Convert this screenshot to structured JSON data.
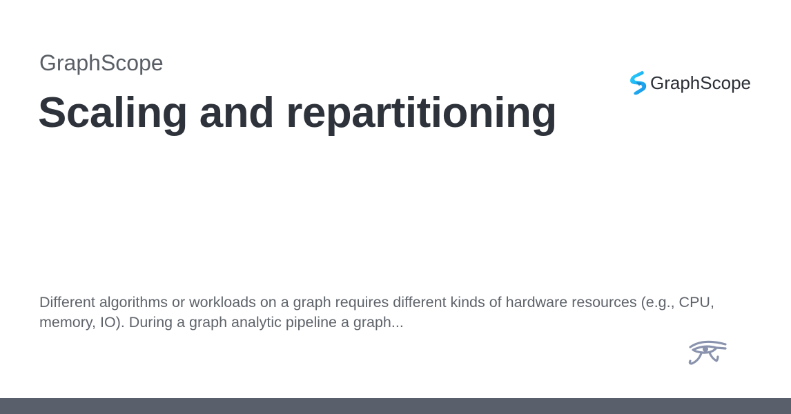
{
  "header": {
    "site_name": "GraphScope",
    "title": "Scaling and repartitioning",
    "logo": {
      "text": "GraphScope",
      "icon": "graphscope-logo-icon",
      "color": "#1db5f5"
    }
  },
  "description": "Different algorithms or workloads on a graph requires different kinds of hardware resources (e.g., CPU, memory, IO). During a graph analytic pipeline a graph...",
  "footer": {
    "icon": "eye-of-horus-icon",
    "color": "#8a93ad",
    "bar_color": "#5a606b"
  }
}
